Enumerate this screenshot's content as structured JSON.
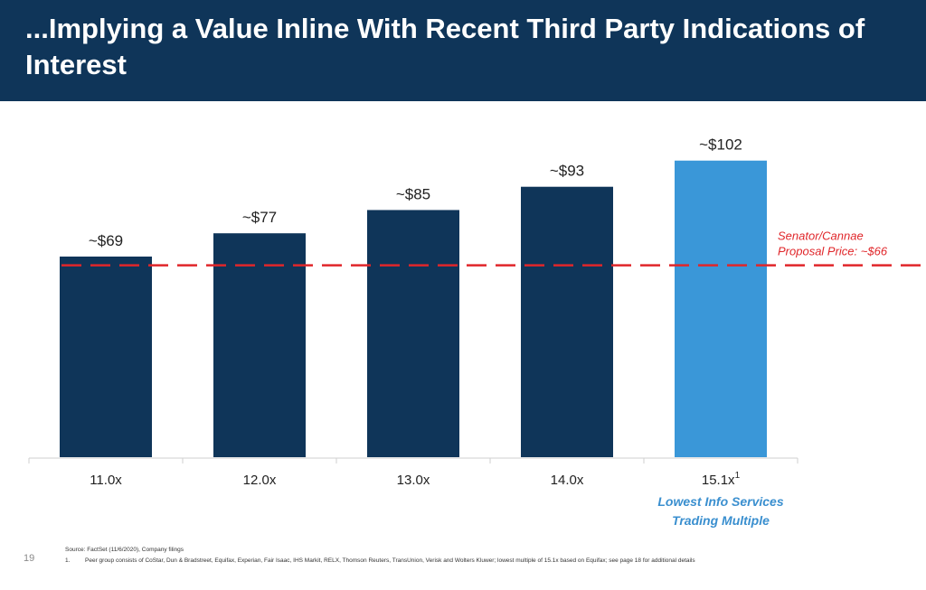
{
  "header": {
    "title": "...Implying a Value Inline With Recent Third Party Indications of Interest"
  },
  "chart_data": {
    "type": "bar",
    "categories": [
      "11.0x",
      "12.0x",
      "13.0x",
      "14.0x",
      "15.1x"
    ],
    "category_superscripts": [
      "",
      "",
      "",
      "",
      "1"
    ],
    "values": [
      69,
      77,
      85,
      93,
      102
    ],
    "value_labels": [
      "~$69",
      "~$77",
      "~$85",
      "~$93",
      "~$102"
    ],
    "highlight_index": 4,
    "ylim": [
      0,
      110
    ],
    "reference_line": {
      "value": 66,
      "label_lines": [
        "Senator/Cannae",
        "Proposal Price: ~$66"
      ]
    },
    "highlight_note_lines": [
      "Lowest Info Services",
      "Trading Multiple"
    ],
    "title": "",
    "xlabel": "",
    "ylabel": ""
  },
  "colors": {
    "bar": "#0f3559",
    "highlight_bar": "#3a97d8",
    "reference_line": "#e0262a",
    "header_bg": "#0f3559"
  },
  "footer": {
    "page_number": "19",
    "source": "Source: FactSet (11/6/2020), Company filings",
    "note_number": "1.",
    "note_text": "Peer group consists of CoStar, Dun & Bradstreet, Equifax, Experian, Fair Isaac, IHS Markit, RELX, Thomson Reuters, TransUnion, Verisk and Wolters Kluwer; lowest multiple of 15.1x based on Equifax; see page 18 for additional details"
  }
}
